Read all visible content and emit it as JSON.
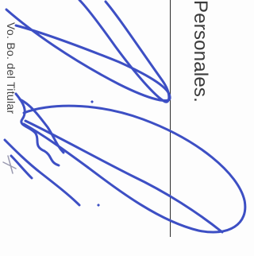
{
  "document": {
    "heading": "Personales.",
    "caption": "Vo. Bo. del Titular"
  },
  "colors": {
    "ink": "#3d4fc4",
    "text": "#3a3a3a",
    "rule": "#2b2b2b",
    "paper": "#fdfdfd"
  }
}
